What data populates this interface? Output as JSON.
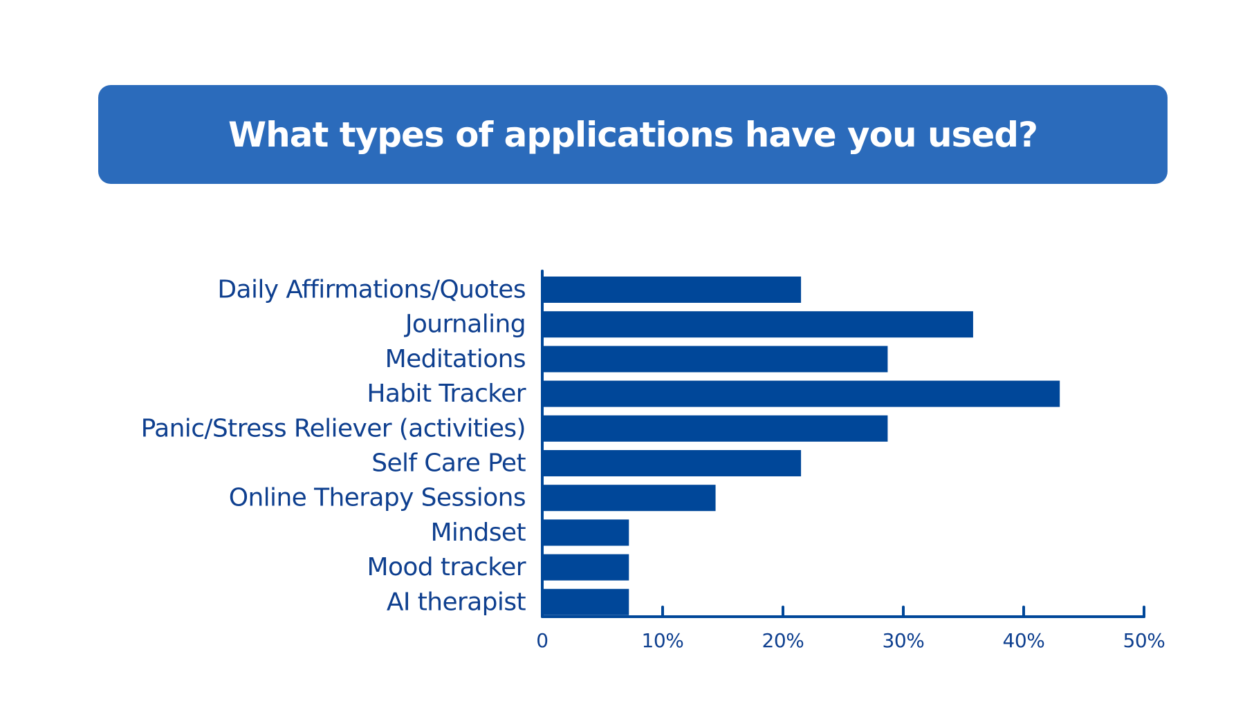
{
  "chart_data": {
    "type": "bar",
    "orientation": "horizontal",
    "title": "What types of applications have you used?",
    "categories": [
      "Daily Affirmations/Quotes",
      "Journaling",
      "Meditations",
      "Habit Tracker",
      "Panic/Stress Reliever (activities)",
      "Self Care Pet",
      "Online Therapy Sessions",
      "Mindset",
      "Mood tracker",
      "AI therapist"
    ],
    "values": [
      21.5,
      35.8,
      28.7,
      43.0,
      28.7,
      21.5,
      14.4,
      7.2,
      7.2,
      7.2
    ],
    "unit": "%",
    "xlim": [
      0,
      50
    ],
    "xticks": [
      0,
      10,
      20,
      30,
      40,
      50
    ],
    "xtick_labels": [
      "0",
      "10%",
      "20%",
      "30%",
      "40%",
      "50%"
    ],
    "grid": false,
    "legend": "none"
  },
  "colors": {
    "banner": "#2b6bbb",
    "bar": "#004799",
    "text": "#0e3f8f",
    "axis": "#004799"
  }
}
